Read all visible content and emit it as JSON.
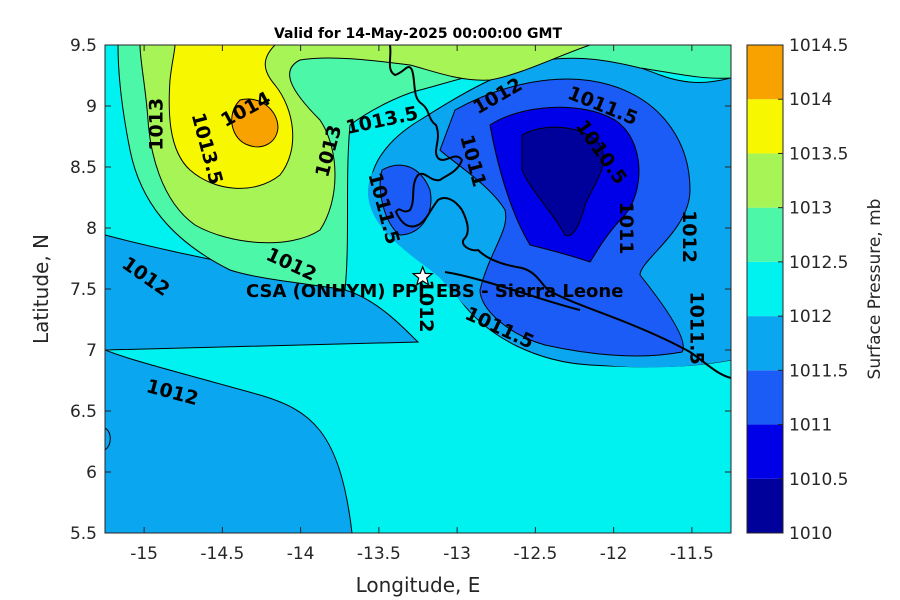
{
  "chart_data": {
    "type": "filled-contour map",
    "title": "Valid for 14-May-2025 00:00:00 GMT",
    "xlabel": "Longitude, E",
    "ylabel": "Latitude, N",
    "xlim": [
      -15.25,
      -11.25
    ],
    "ylim": [
      5.5,
      9.5
    ],
    "xticks": [
      "-15",
      "-14.5",
      "-14",
      "-13.5",
      "-13",
      "-12.5",
      "-12",
      "-11.5"
    ],
    "yticks": [
      "5.5",
      "6",
      "6.5",
      "7",
      "7.5",
      "8",
      "8.5",
      "9",
      "9.5"
    ],
    "colorbar": {
      "label": "Surface Pressure, mb",
      "levels": [
        "1010",
        "1010.5",
        "1011",
        "1011.5",
        "1012",
        "1012.5",
        "1013",
        "1013.5",
        "1014",
        "1014.5"
      ],
      "colors": [
        "#00009a",
        "#0000e8",
        "#1a5cf5",
        "#0aa6ef",
        "#00f2f0",
        "#4cf7a8",
        "#a6f455",
        "#f7f700",
        "#f8a200",
        "#ff5a00"
      ]
    },
    "contour_labels": [
      {
        "text": "1014",
        "lon": -14.35,
        "lat": 8.97,
        "angle": -28
      },
      {
        "text": "1013.5",
        "lon": -14.6,
        "lat": 8.65,
        "angle": 75
      },
      {
        "text": "1013",
        "lon": -14.92,
        "lat": 8.85,
        "angle": -90
      },
      {
        "text": "1013",
        "lon": -13.82,
        "lat": 8.63,
        "angle": -75
      },
      {
        "text": "1013.5",
        "lon": -13.48,
        "lat": 8.88,
        "angle": -12
      },
      {
        "text": "1012",
        "lon": -12.74,
        "lat": 9.08,
        "angle": -30
      },
      {
        "text": "1011.5",
        "lon": -12.07,
        "lat": 9.0,
        "angle": 22
      },
      {
        "text": "1011",
        "lon": -12.9,
        "lat": 8.55,
        "angle": 75
      },
      {
        "text": "1010.5",
        "lon": -12.08,
        "lat": 8.62,
        "angle": 55
      },
      {
        "text": "1011.5",
        "lon": -13.47,
        "lat": 8.16,
        "angle": 75
      },
      {
        "text": "1011",
        "lon": -11.92,
        "lat": 8.0,
        "angle": 90
      },
      {
        "text": "1012",
        "lon": -11.52,
        "lat": 7.93,
        "angle": 90
      },
      {
        "text": "1012",
        "lon": -14.06,
        "lat": 7.7,
        "angle": 25
      },
      {
        "text": "1012",
        "lon": -14.99,
        "lat": 7.6,
        "angle": 35
      },
      {
        "text": "1012",
        "lon": -13.2,
        "lat": 7.36,
        "angle": 90
      },
      {
        "text": "1011.5",
        "lon": -12.73,
        "lat": 7.18,
        "angle": 25
      },
      {
        "text": "1011.5",
        "lon": -11.47,
        "lat": 7.18,
        "angle": 90
      },
      {
        "text": "1012",
        "lon": -14.82,
        "lat": 6.65,
        "angle": 15
      }
    ],
    "site": {
      "lon": -13.22,
      "lat": 7.6,
      "label": "CSA (ONHYM) PPL EBS - Sierra Leone"
    }
  }
}
